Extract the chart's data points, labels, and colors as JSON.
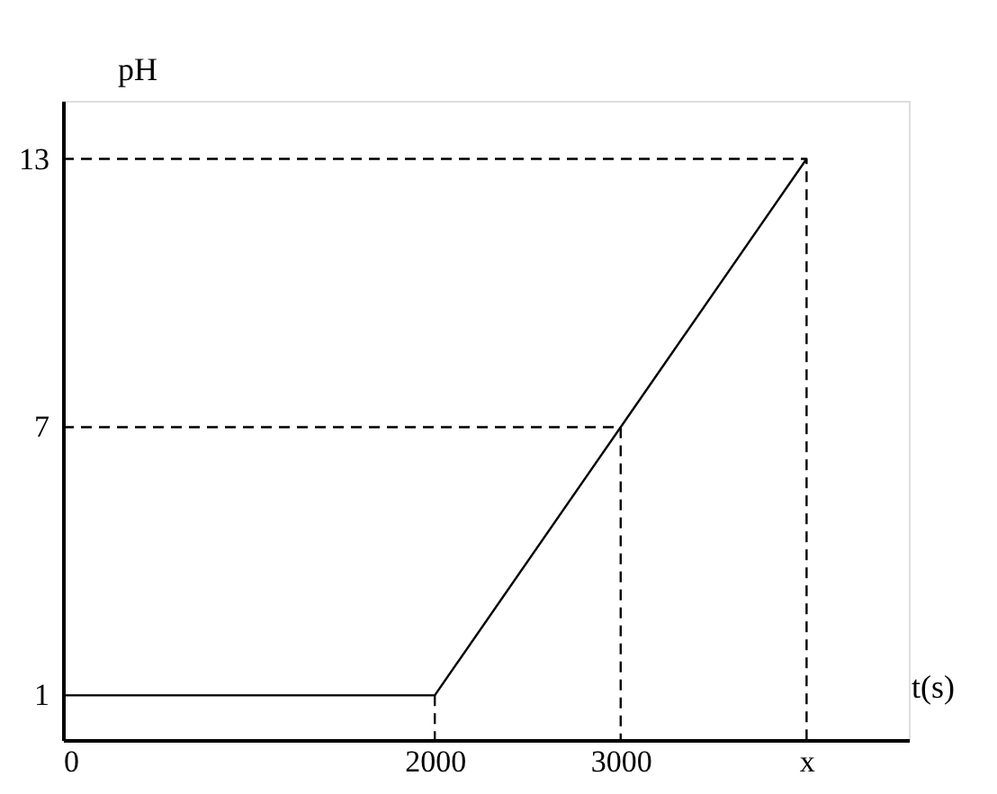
{
  "chart_data": {
    "type": "line",
    "xlabel": "t(s)",
    "ylabel": "pH",
    "x": [
      0,
      2000,
      3000,
      4000
    ],
    "series": [
      {
        "color": "#000000",
        "values": [
          1,
          1,
          7,
          13
        ]
      },
      {
        "color": "#000000",
        "x": [
          0,
          4000,
          4000
        ],
        "values": [
          13,
          13,
          0
        ],
        "line_style": "dashed"
      },
      {
        "color": "#000000",
        "x": [
          0,
          3000,
          3000
        ],
        "values": [
          7,
          7,
          0
        ],
        "line_style": "dashed"
      },
      {
        "color": "#000000",
        "x": [
          2000,
          2000
        ],
        "values": [
          1,
          0
        ],
        "line_style": "dashed"
      }
    ],
    "xlim": [
      0,
      4550
    ],
    "ylim": [
      0,
      14.3
    ],
    "xticks": [
      {
        "value": 0,
        "label": "0"
      },
      2000,
      3000,
      {
        "value": 4000,
        "label": "x"
      }
    ],
    "yticks": [
      1,
      7,
      13
    ],
    "grid": false,
    "marker": "none",
    "line_style": "solid"
  }
}
